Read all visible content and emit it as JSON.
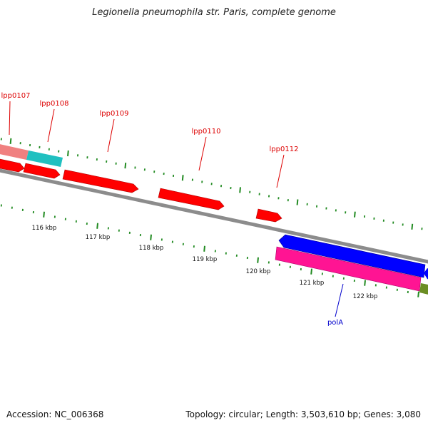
{
  "title": "Legionella pneumophila str. Paris, complete genome",
  "footer": {
    "accession": "Accession: NC_006368",
    "summary": "Topology: circular; Length: 3,503,610 bp; Genes: 3,080"
  },
  "colors": {
    "forward_cds": "#ff0000",
    "reverse_cds": "#0000ff",
    "backbone": "#808080",
    "ticks": "#228b22",
    "forward_label": "#dd0000",
    "reverse_label": "#0000cc",
    "pink_feature": "#ff1493",
    "salmon_feature": "#f08080",
    "cyan_feature": "#20c0c0",
    "olive_feature": "#6b8e23"
  },
  "genes": [
    {
      "name": "lpp0107"
    },
    {
      "name": "lpp0108"
    },
    {
      "name": "lpp0109"
    },
    {
      "name": "lpp0110"
    },
    {
      "name": "lpp0112"
    },
    {
      "name": "polA"
    }
  ],
  "scale": {
    "labels": [
      "116 kbp",
      "117 kbp",
      "118 kbp",
      "119 kbp",
      "120 kbp",
      "121 kbp",
      "122 kbp"
    ]
  }
}
